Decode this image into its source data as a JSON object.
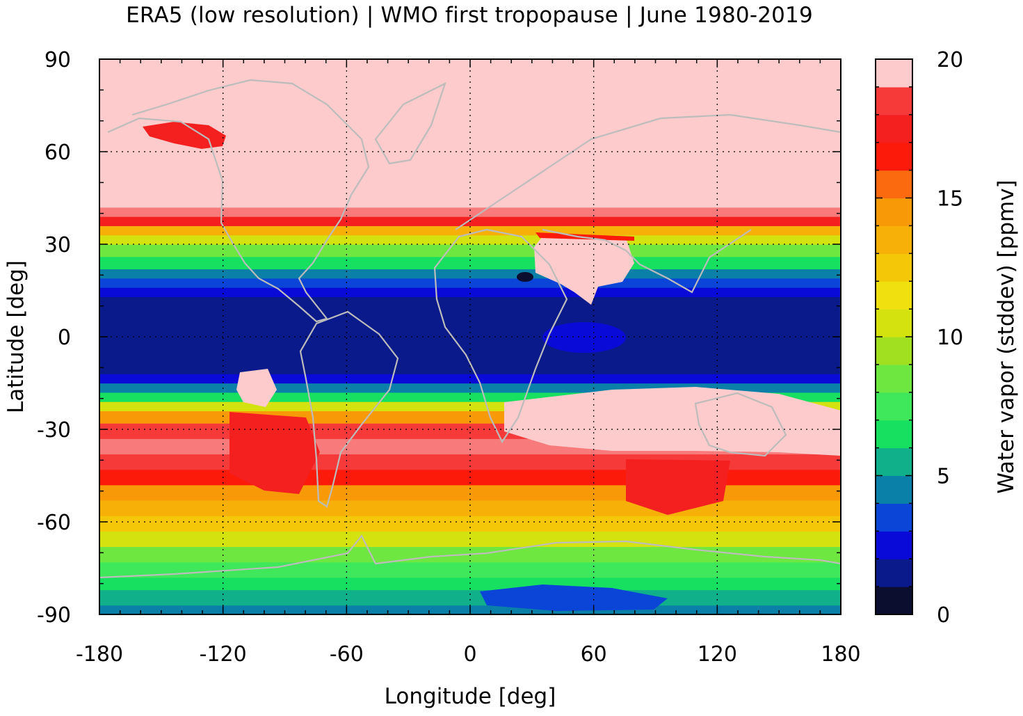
{
  "title": "ERA5 (low resolution) | WMO first tropopause | June 1980-2019",
  "chart_data": {
    "type": "heatmap",
    "title": "ERA5 (low resolution) | WMO first tropopause | June 1980-2019",
    "xlabel": "Longitude [deg]",
    "ylabel": "Latitude [deg]",
    "xlim": [
      -180,
      180
    ],
    "ylim": [
      -90,
      90
    ],
    "x_ticks": [
      "-180",
      "-120",
      "-60",
      "0",
      "60",
      "120",
      "180"
    ],
    "y_ticks": [
      "90",
      "60",
      "30",
      "0",
      "-30",
      "-60",
      "-90"
    ],
    "grid": true,
    "grid_style": "dotted",
    "colorbar": {
      "label": "Water vapor (stddev) [ppmv]",
      "range": [
        0,
        20
      ],
      "ticks": [
        "20",
        "15",
        "10",
        "5",
        "0"
      ],
      "levels": 20,
      "colors": [
        "#0b0e2e",
        "#0a1a8a",
        "#0a0ad8",
        "#0b45d8",
        "#0a7fa8",
        "#10b08a",
        "#17e060",
        "#3ee85a",
        "#6ee840",
        "#a0e020",
        "#d4e210",
        "#f0e010",
        "#f4c808",
        "#f6b008",
        "#f89a08",
        "#fc6a10",
        "#fc1a0a",
        "#f42020",
        "#f63a3a",
        "#f87a7a",
        "#fdcbcb"
      ]
    },
    "zonal_profile": {
      "lat": [
        -90,
        -87,
        -82,
        -78,
        -73,
        -68,
        -63,
        -58,
        -53,
        -48,
        -43,
        -38,
        -33,
        -28,
        -24,
        -21,
        -18,
        -15,
        -12,
        -9,
        -3,
        3,
        9,
        13,
        16,
        19,
        22,
        26,
        30,
        33,
        36,
        39,
        42,
        50,
        60,
        70,
        80,
        90
      ],
      "value": [
        4.5,
        4.9,
        5.5,
        6.5,
        8.0,
        9.5,
        11.5,
        13.0,
        14.0,
        15.5,
        17.0,
        19.0,
        20.0,
        16.0,
        12.0,
        8.0,
        5.0,
        3.5,
        2.0,
        1.5,
        1.3,
        1.3,
        1.5,
        2.0,
        3.0,
        4.0,
        5.0,
        7.0,
        9.0,
        12.0,
        15.5,
        19.0,
        20.0,
        20.0,
        20.0,
        20.0,
        20.0,
        20.0
      ]
    }
  }
}
